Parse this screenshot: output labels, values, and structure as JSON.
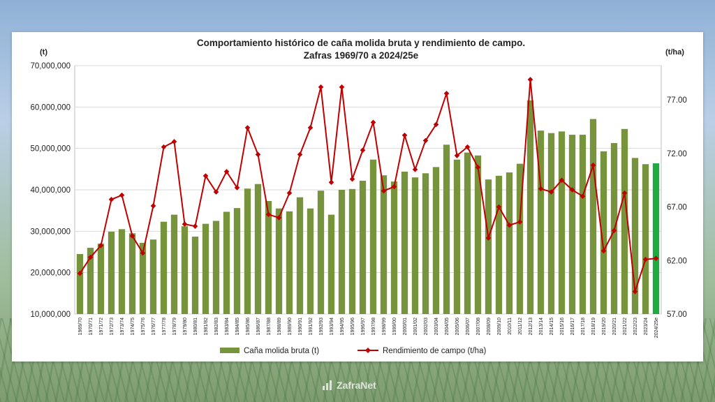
{
  "chart_data": {
    "type": "bar+line",
    "title_line1": "Comportamiento histórico de caña molida bruta y rendimiento de campo.",
    "title_line2": "Zafras 1969/70 a 2024/25e",
    "y_left_unit": "(t)",
    "y_right_unit": "(t/ha)",
    "y_left_ticks": [
      "10,000,000",
      "20,000,000",
      "30,000,000",
      "40,000,000",
      "50,000,000",
      "60,000,000",
      "70,000,000"
    ],
    "y_right_ticks": [
      "57.00",
      "62.00",
      "67.00",
      "72.00",
      "77.00"
    ],
    "y_left_range": [
      10000000,
      70000000
    ],
    "y_right_range": [
      57,
      80.2
    ],
    "grid": true,
    "legend_position": "bottom",
    "categories": [
      "1969/70",
      "1970/71",
      "1971/72",
      "1972/73",
      "1973/74",
      "1974/75",
      "1975/76",
      "1976/77",
      "1977/78",
      "1978/79",
      "1979/80",
      "1980/81",
      "1981/82",
      "1982/83",
      "1983/84",
      "1984/85",
      "1985/86",
      "1986/87",
      "1987/88",
      "1988/89",
      "1989/90",
      "1990/91",
      "1991/92",
      "1992/93",
      "1993/94",
      "1994/95",
      "1995/96",
      "1996/97",
      "1997/98",
      "1998/99",
      "1999/00",
      "2000/01",
      "2001/02",
      "2002/03",
      "2003/04",
      "2004/05",
      "2005/06",
      "2006/07",
      "2007/08",
      "2008/09",
      "2009/10",
      "2010/11",
      "2011/12",
      "2012/13",
      "2013/14",
      "2014/15",
      "2015/16",
      "2016/17",
      "2017/18",
      "2018/19",
      "2019/20",
      "2020/21",
      "2021/22",
      "2022/23",
      "2023/24",
      "2024/25e"
    ],
    "series": [
      {
        "name": "Caña molida bruta (t)",
        "type": "bar",
        "axis": "left",
        "color": "#77933c",
        "highlight_last_color": "#1faa44",
        "values": [
          24500000,
          26000000,
          27000000,
          29900000,
          30500000,
          29500000,
          27200000,
          28000000,
          32300000,
          34000000,
          31200000,
          28700000,
          31800000,
          32500000,
          34700000,
          35600000,
          40300000,
          41400000,
          37300000,
          35500000,
          34800000,
          38200000,
          35500000,
          39800000,
          34000000,
          40000000,
          40200000,
          42200000,
          47300000,
          43500000,
          42000000,
          44400000,
          43000000,
          44000000,
          45500000,
          50900000,
          47300000,
          49000000,
          48300000,
          42500000,
          43400000,
          44200000,
          46300000,
          61600000,
          54300000,
          53700000,
          54100000,
          53300000,
          53300000,
          57100000,
          49300000,
          51300000,
          54700000,
          47700000,
          46200000,
          46400000
        ]
      },
      {
        "name": "Rendimiento de campo (t/ha)",
        "type": "line",
        "axis": "right",
        "color": "#c00000",
        "values": [
          60.8,
          62.3,
          63.4,
          67.7,
          68.1,
          64.3,
          62.7,
          67.1,
          72.6,
          73.1,
          65.4,
          65.2,
          69.9,
          68.4,
          70.3,
          68.8,
          74.4,
          71.9,
          66.3,
          66.0,
          68.3,
          71.9,
          74.4,
          78.2,
          69.3,
          78.2,
          69.6,
          72.3,
          74.9,
          68.5,
          68.9,
          73.7,
          70.5,
          73.2,
          74.7,
          77.6,
          71.8,
          72.6,
          70.7,
          64.1,
          67.0,
          65.3,
          65.6,
          78.9,
          68.7,
          68.4,
          69.5,
          68.6,
          68.0,
          70.9,
          62.9,
          64.8,
          68.3,
          59.1,
          62.1,
          62.2
        ]
      }
    ]
  },
  "brand": {
    "label": "ZafraNet"
  }
}
